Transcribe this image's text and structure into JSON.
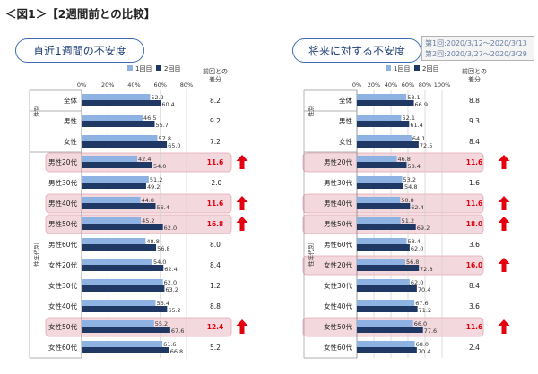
{
  "page": {
    "title": "＜図1＞【2週間前との比較】",
    "note_line1": "第1回:2020/3/12～2020/3/13",
    "note_line2": "第2回:2020/3/27～2020/3/29"
  },
  "colors": {
    "series1": "#8eb3e3",
    "series2": "#1f3864",
    "highlight": "#f3d9dd",
    "highlight_border": "#e2a8b1",
    "arrow": "#e3000f",
    "diff_up": "#e3000f"
  },
  "chart_data": [
    {
      "type": "bar",
      "orientation": "horizontal",
      "title": "直近1週間の不安度",
      "legend": [
        "1回目",
        "2回目"
      ],
      "legend_position": "top",
      "diff_header": "前回との差分",
      "xlim": [
        0,
        80
      ],
      "xticks": [
        "0%",
        "20%",
        "40%",
        "60%",
        "80%"
      ],
      "group_labels": [
        {
          "label": "性別",
          "from": 1,
          "to": 2
        },
        {
          "label": "性年代別",
          "from": 3,
          "to": 14
        }
      ],
      "categories": [
        "全体",
        "男性",
        "女性",
        "男性20代",
        "男性30代",
        "男性40代",
        "男性50代",
        "男性60代",
        "女性20代",
        "女性30代",
        "女性40代",
        "女性50代",
        "女性60代"
      ],
      "series": [
        {
          "name": "1回目",
          "values": [
            52.2,
            46.5,
            57.8,
            42.4,
            51.2,
            44.8,
            45.2,
            48.8,
            54.0,
            62.0,
            56.4,
            55.2,
            61.6
          ]
        },
        {
          "name": "2回目",
          "values": [
            60.4,
            55.7,
            65.0,
            54.0,
            49.2,
            56.4,
            62.0,
            56.8,
            62.4,
            63.2,
            65.2,
            67.6,
            66.8
          ]
        }
      ],
      "diff_labels": [
        "8.2",
        "9.2",
        "7.2",
        "11.6",
        "-2.0",
        "11.6",
        "16.8",
        "8.0",
        "8.4",
        "1.2",
        "8.8",
        "12.4",
        "5.2"
      ],
      "highlighted": [
        false,
        false,
        false,
        true,
        false,
        true,
        true,
        false,
        false,
        false,
        false,
        true,
        false
      ]
    },
    {
      "type": "bar",
      "orientation": "horizontal",
      "title": "将来に対する不安度",
      "legend": [
        "1回目",
        "2回目"
      ],
      "legend_position": "top",
      "diff_header": "前回との差分",
      "xlim": [
        0,
        100
      ],
      "xticks": [
        "0%",
        "20%",
        "40%",
        "60%",
        "80%",
        "100%"
      ],
      "group_labels": [
        {
          "label": "性別",
          "from": 1,
          "to": 2
        },
        {
          "label": "性年代別",
          "from": 3,
          "to": 14
        }
      ],
      "categories": [
        "全体",
        "男性",
        "女性",
        "男性20代",
        "男性30代",
        "男性40代",
        "男性50代",
        "男性60代",
        "女性20代",
        "女性30代",
        "女性40代",
        "女性50代",
        "女性60代"
      ],
      "series": [
        {
          "name": "1回目",
          "values": [
            58.1,
            52.1,
            64.1,
            46.8,
            53.2,
            50.8,
            51.2,
            58.4,
            56.8,
            62.0,
            67.6,
            66.0,
            68.0
          ]
        },
        {
          "name": "2回目",
          "values": [
            66.9,
            61.4,
            72.5,
            58.4,
            54.8,
            62.4,
            69.2,
            62.0,
            72.8,
            70.4,
            71.2,
            77.6,
            70.4
          ]
        }
      ],
      "diff_labels": [
        "8.8",
        "9.3",
        "8.4",
        "11.6",
        "1.6",
        "11.6",
        "18.0",
        "3.6",
        "16.0",
        "8.4",
        "3.6",
        "11.6",
        "2.4"
      ],
      "highlighted": [
        false,
        false,
        false,
        true,
        false,
        true,
        true,
        false,
        true,
        false,
        false,
        true,
        false
      ]
    }
  ]
}
